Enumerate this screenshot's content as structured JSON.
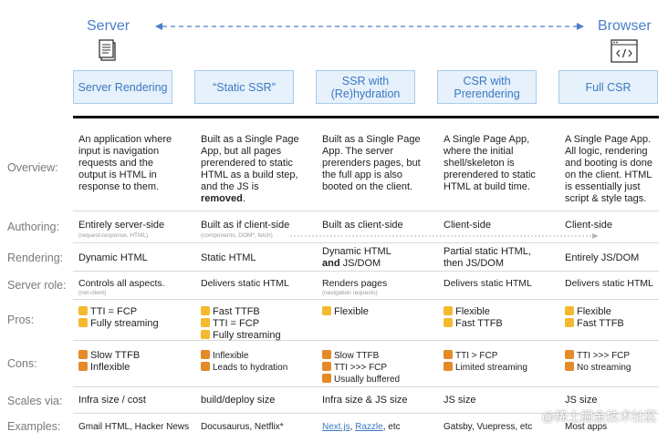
{
  "top": {
    "server_label": "Server",
    "browser_label": "Browser"
  },
  "columns": [
    {
      "label": "Server Rendering"
    },
    {
      "label": "“Static SSR”"
    },
    {
      "label": "SSR with (Re)hydration"
    },
    {
      "label": "CSR with Prerendering"
    },
    {
      "label": "Full CSR"
    }
  ],
  "rows": {
    "overview": {
      "label": "Overview:",
      "cells": [
        "An application where input is navigation requests and the output is HTML in response to them.",
        "Built as a Single Page App, but all pages prerendered to static HTML as a build step, and the JS is",
        "Built as a Single Page App. The server prerenders pages, but the full app is also booted on the client.",
        "A Single Page App, where the initial shell/skeleton is prerendered to static HTML at build time.",
        "A Single Page App. All logic, rendering and booting is done on the client. HTML is essentially just script & style tags."
      ],
      "removed_word": "removed",
      "removed_suffix": "."
    },
    "authoring": {
      "label": "Authoring:",
      "cells": [
        "Entirely server-side",
        "Built as if client-side",
        "Built as client-side",
        "Client-side",
        "Client-side"
      ],
      "subs": [
        "(request-response, HTML)",
        "(components, DOM*, fetch)"
      ]
    },
    "rendering": {
      "label": "Rendering:",
      "cells": [
        "Dynamic HTML",
        "Static HTML",
        "Dynamic HTML",
        "Partial static HTML, then JS/DOM",
        "Entirely JS/DOM"
      ],
      "and_word": "and",
      "and_suffix": " JS/DOM"
    },
    "server_role": {
      "label": "Server role:",
      "cells": [
        "Controls all aspects.",
        "Delivers static HTML",
        "Renders pages",
        "Delivers static HTML",
        "Delivers static HTML"
      ],
      "subs": [
        "(not client)",
        "(navigation requests)"
      ]
    },
    "pros": {
      "label": "Pros:",
      "cells": [
        [
          "TTI = FCP",
          "Fully streaming"
        ],
        [
          "Fast TTFB",
          "TTI = FCP",
          "Fully streaming"
        ],
        [
          "Flexible"
        ],
        [
          "Flexible",
          "Fast TTFB"
        ],
        [
          "Flexible",
          "Fast TTFB"
        ]
      ]
    },
    "cons": {
      "label": "Cons:",
      "cells": [
        [
          "Slow TTFB",
          "Inflexible"
        ],
        [
          "Inflexible",
          "Leads to hydration"
        ],
        [
          "Slow TTFB",
          "TTI >>> FCP",
          "Usually buffered"
        ],
        [
          "TTI > FCP",
          "Limited streaming"
        ],
        [
          "TTI >>> FCP",
          "No streaming"
        ]
      ]
    },
    "scales": {
      "label": "Scales via:",
      "cells": [
        "Infra size / cost",
        "build/deploy size",
        "Infra size & JS size",
        "JS size",
        "JS size"
      ]
    },
    "examples": {
      "label": "Examples:",
      "cells": [
        "Gmail HTML, Hacker News",
        "Docusaurus, Netflix*",
        "",
        "Gatsby, Vuepress, etc",
        "Most apps"
      ],
      "ssr_links": [
        "Next.js",
        "Razzle"
      ],
      "ssr_sep": ", ",
      "ssr_suffix": ", etc"
    }
  },
  "watermark": "@稀土掘金技术社区",
  "colors": {
    "accent": "#4a80c8",
    "box_fill": "#e6f1fb",
    "box_border": "#a9cbeb",
    "thumb_up": "#f5b92f",
    "thumb_down": "#e48a27"
  }
}
